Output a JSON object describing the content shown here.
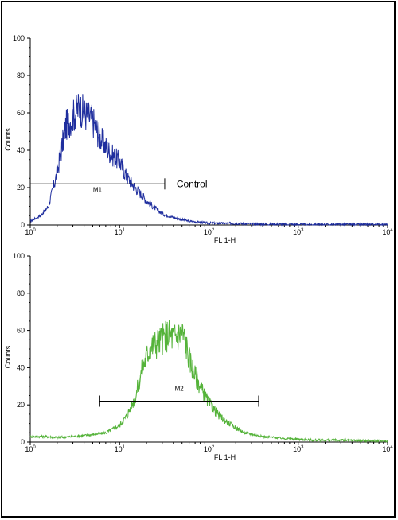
{
  "colors": {
    "series_top": "#1f2e9e",
    "series_bottom": "#55b33a",
    "axis": "#000000",
    "background": "#ffffff"
  },
  "chart_data": [
    {
      "type": "line",
      "xscale": "log",
      "xlim": [
        1,
        10000
      ],
      "ylim": [
        0,
        100
      ],
      "xlabel": "FL 1-H",
      "ylabel": "Counts",
      "yticks": [
        "0",
        "20",
        "40",
        "60",
        "80",
        "100"
      ],
      "xticks": [
        {
          "base": "10",
          "exp": "0"
        },
        {
          "base": "10",
          "exp": "1"
        },
        {
          "base": "10",
          "exp": "2"
        },
        {
          "base": "10",
          "exp": "3"
        },
        {
          "base": "10",
          "exp": "4"
        }
      ],
      "series": [
        {
          "color": "#1f2e9e",
          "x": [
            1,
            1.3,
            1.6,
            2,
            2.5,
            3,
            3.5,
            4,
            5,
            6,
            7,
            8,
            10,
            12,
            15,
            20,
            25,
            30,
            40,
            60,
            100,
            200,
            400,
            1000,
            10000
          ],
          "y": [
            2,
            5,
            10,
            28,
            53,
            58,
            63,
            60,
            56,
            47,
            42,
            38,
            34,
            26,
            20,
            13,
            9,
            6,
            4,
            2,
            1,
            0.8,
            0.5,
            0.3,
            0.2
          ]
        }
      ],
      "marker": {
        "label": "M1",
        "x_start": 1,
        "x_end": 32,
        "y": 22
      },
      "annotation": {
        "text": "Control",
        "x": 40,
        "y": 22
      }
    },
    {
      "type": "line",
      "xscale": "log",
      "xlim": [
        1,
        10000
      ],
      "ylim": [
        0,
        100
      ],
      "xlabel": "FL 1-H",
      "ylabel": "Counts",
      "yticks": [
        "0",
        "20",
        "40",
        "60",
        "80",
        "100"
      ],
      "xticks": [
        {
          "base": "10",
          "exp": "0"
        },
        {
          "base": "10",
          "exp": "1"
        },
        {
          "base": "10",
          "exp": "2"
        },
        {
          "base": "10",
          "exp": "3"
        },
        {
          "base": "10",
          "exp": "4"
        }
      ],
      "series": [
        {
          "color": "#55b33a",
          "x": [
            1,
            1.5,
            2,
            3,
            5,
            7,
            10,
            12,
            15,
            18,
            22,
            28,
            35,
            40,
            50,
            55,
            60,
            70,
            85,
            100,
            130,
            180,
            250,
            400,
            700,
            1500,
            3000,
            10000
          ],
          "y": [
            3,
            3,
            2.5,
            3,
            4,
            5,
            9,
            14,
            24,
            40,
            51,
            54,
            58,
            56,
            59,
            53,
            45,
            36,
            27,
            21,
            14,
            9,
            5,
            3,
            2,
            1,
            1,
            0.5
          ]
        }
      ],
      "marker": {
        "label": "M2",
        "x_start": 6,
        "x_end": 360,
        "y": 22
      }
    }
  ]
}
